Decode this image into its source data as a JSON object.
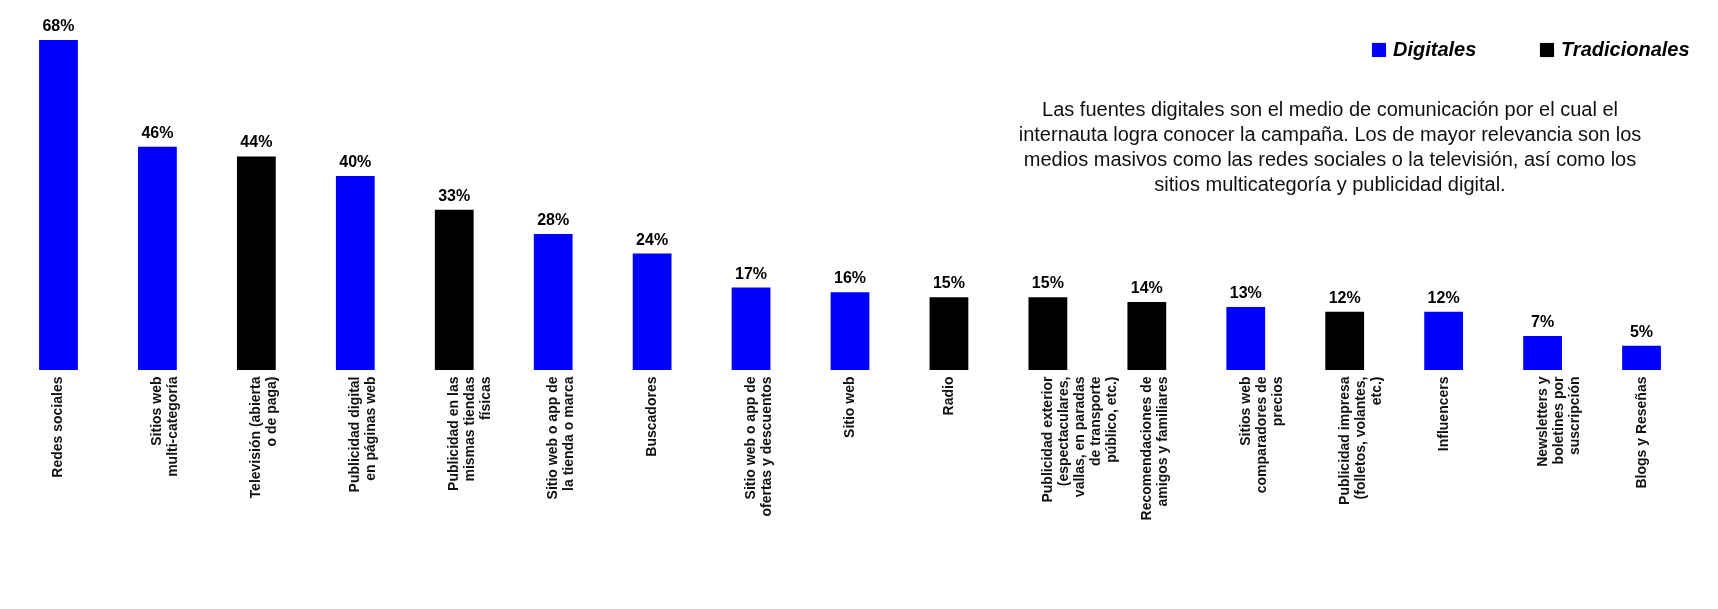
{
  "chart_data": {
    "type": "bar",
    "categories": [
      "Redes sociales",
      "Sitios web multi-categoría",
      "Televisión (abierta o de paga)",
      "Publicidad digital en páginas web",
      "Publicidad en las mismas tiendas físicas",
      "Sitio web o app de la tienda o marca",
      "Buscadores",
      "Sitio web o app de ofertas y descuentos",
      "Sitio web",
      "Radio",
      "Publicidad exterior (espectaculares, vallas, en paradas de transporte público, etc.)",
      "Recomendaciones de amigos y familiares",
      "Sitios web comparadores de precios",
      "Publicidad impresa (folletos, volantes, etc.)",
      "Influencers",
      "Newsletters y boletines por suscripción",
      "Blogs y Reseñas"
    ],
    "series": [
      {
        "name": "Digitales",
        "color": "#0000ff",
        "values": [
          68,
          46,
          null,
          40,
          null,
          28,
          24,
          17,
          16,
          null,
          null,
          null,
          13,
          null,
          12,
          7,
          5
        ],
        "value_labels": [
          "68%",
          "46%",
          null,
          "40%",
          null,
          "28%",
          "24%",
          "17%",
          "16%",
          null,
          null,
          null,
          "13%",
          null,
          "12%",
          "7%",
          "5%"
        ]
      },
      {
        "name": "Tradicionales",
        "color": "#000000",
        "values": [
          null,
          null,
          44,
          null,
          33,
          null,
          null,
          null,
          null,
          15,
          15,
          14,
          null,
          12,
          null,
          null,
          null
        ],
        "value_labels": [
          null,
          null,
          "44%",
          null,
          "33%",
          null,
          null,
          null,
          null,
          "15%",
          "15%",
          "14%",
          null,
          "12%",
          null,
          null,
          null
        ]
      }
    ],
    "tick_labels": "x",
    "legend": "top right",
    "annotations": [
      "Las fuentes digitales son el medio de comunicación por el cual el internauta logra conocer la campaña. Los de mayor relevancia son los medios masivos como las redes sociales o la televisión, así como los sitios multicategoría y publicidad digital."
    ]
  }
}
